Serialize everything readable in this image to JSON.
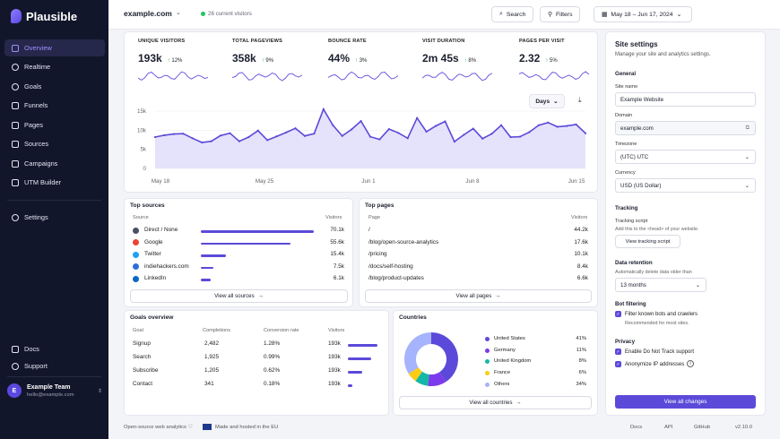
{
  "app": {
    "name": "Plausible"
  },
  "sidebar": {
    "items": [
      {
        "label": "Overview",
        "icon": "grid-icon"
      },
      {
        "label": "Realtime",
        "icon": "clock-icon"
      },
      {
        "label": "Goals",
        "icon": "target-icon"
      },
      {
        "label": "Funnels",
        "icon": "funnel-icon"
      },
      {
        "label": "Pages",
        "icon": "page-icon"
      },
      {
        "label": "Sources",
        "icon": "sources-icon"
      },
      {
        "label": "Campaigns",
        "icon": "megaphone-icon"
      },
      {
        "label": "UTM Builder",
        "icon": "builder-icon"
      }
    ],
    "settings": "Settings",
    "docs": "Docs",
    "support": "Support",
    "user": {
      "initial": "E",
      "name": "Example Team",
      "email": "hello@example.com"
    }
  },
  "header": {
    "site": "example.com",
    "visitors_now": "26 current visitors",
    "search": "Search",
    "filters": "Filters",
    "date_range": "May 18 – Jun 17, 2024"
  },
  "stats": [
    {
      "label": "UNIQUE VISITORS",
      "value": "193k",
      "change": "12%"
    },
    {
      "label": "TOTAL PAGEVIEWS",
      "value": "358k",
      "change": "9%"
    },
    {
      "label": "BOUNCE RATE",
      "value": "44%",
      "change": "3%"
    },
    {
      "label": "VISIT DURATION",
      "value": "2m 45s",
      "change": "8%"
    },
    {
      "label": "PAGES PER VISIT",
      "value": "2.32",
      "change": "5%"
    }
  ],
  "graph": {
    "interval": "Days"
  },
  "chart_data": {
    "type": "area",
    "title": "",
    "ylim": [
      0,
      15000
    ],
    "yticks": [
      "15k",
      "10k",
      "5k",
      "0"
    ],
    "xticks": [
      "May 18",
      "May 25",
      "Jun 1",
      "Jun 8",
      "Jun 15"
    ],
    "values": [
      8200,
      8700,
      9000,
      9100,
      7900,
      6800,
      7100,
      8600,
      9200,
      7100,
      8200,
      9900,
      7400,
      8400,
      9400,
      10500,
      8500,
      9100,
      15500,
      11300,
      8500,
      10200,
      12400,
      8300,
      7600,
      10300,
      9300,
      7900,
      13200,
      9600,
      11100,
      12300,
      7000,
      8800,
      10400,
      7800,
      9100,
      11300,
      8200,
      8300,
      9500,
      11300,
      12000,
      10900,
      11100,
      11500,
      9200
    ]
  },
  "top_sources": {
    "title": "Top sources",
    "col_source": "Source",
    "col_visitors": "Visitors",
    "view_all": "View all sources",
    "rows": [
      {
        "name": "Direct / None",
        "value": "70.1k",
        "frac": 1.0,
        "color": "#4a4f63"
      },
      {
        "name": "Google",
        "value": "55.6k",
        "frac": 0.79,
        "color": "#ea4335"
      },
      {
        "name": "Twitter",
        "value": "15.4k",
        "frac": 0.22,
        "color": "#1da1f2"
      },
      {
        "name": "indiehackers.com",
        "value": "7.5k",
        "frac": 0.11,
        "color": "#2e6fd8"
      },
      {
        "name": "LinkedIn",
        "value": "6.1k",
        "frac": 0.09,
        "color": "#0a66c2"
      }
    ]
  },
  "top_pages": {
    "title": "Top pages",
    "col_page": "Page",
    "col_visitors": "Visitors",
    "view_all": "View all pages",
    "rows": [
      {
        "name": "/",
        "value": "44.2k"
      },
      {
        "name": "/blog/open-source-analytics",
        "value": "17.6k"
      },
      {
        "name": "/pricing",
        "value": "10.1k"
      },
      {
        "name": "/docs/self-hosting",
        "value": "8.4k"
      },
      {
        "name": "/blog/product-updates",
        "value": "6.6k"
      }
    ]
  },
  "goals": {
    "title": "Goals overview",
    "cols": [
      "Goal",
      "Completions",
      "Conversion rate",
      "Visitors"
    ],
    "rows": [
      {
        "name": "Signup",
        "completions": "2,482",
        "rate": "1.28%",
        "visitors": "193k",
        "frac": 1.0
      },
      {
        "name": "Search",
        "completions": "1,925",
        "rate": "0.99%",
        "visitors": "193k",
        "frac": 0.78
      },
      {
        "name": "Subscribe",
        "completions": "1,205",
        "rate": "0.62%",
        "visitors": "193k",
        "frac": 0.49
      },
      {
        "name": "Contact",
        "completions": "341",
        "rate": "0.18%",
        "visitors": "193k",
        "frac": 0.14
      }
    ]
  },
  "countries": {
    "title": "Countries",
    "view_all": "View all countries",
    "rows": [
      {
        "name": "United States",
        "value": "41%",
        "frac": 0.41,
        "color": "#5b4ad9"
      },
      {
        "name": "Germany",
        "value": "11%",
        "frac": 0.11,
        "color": "#7c3aed"
      },
      {
        "name": "United Kingdom",
        "value": "8%",
        "frac": 0.08,
        "color": "#14b8a6"
      },
      {
        "name": "France",
        "value": "6%",
        "frac": 0.06,
        "color": "#facc15"
      },
      {
        "name": "Others",
        "value": "34%",
        "frac": 0.34,
        "color": "#a5b4fc"
      }
    ]
  },
  "settings": {
    "title": "Site settings",
    "subtitle": "Manage your site and analytics settings.",
    "general": "General",
    "site_name_label": "Site name",
    "site_name": "Example Website",
    "domain_label": "Domain",
    "domain": "example.com",
    "timezone_label": "Timezone",
    "timezone": "(UTC) UTC",
    "currency_label": "Currency",
    "currency": "USD (US Dollar)",
    "tracking": "Tracking",
    "tracking_script": "Tracking script",
    "tracking_hint": "Add this to the <head> of your website.",
    "view_script": "View tracking script",
    "retention": "Data retention",
    "retention_hint": "Automatically delete data older than",
    "retention_value": "13 months",
    "bot": "Bot filtering",
    "bot_option": "Filter known bots and crawlers",
    "bot_hint": "Recommended for most sites.",
    "privacy": "Privacy",
    "dnt": "Enable Do Not Track support",
    "anon": "Anonymize IP addresses",
    "save": "View all changes"
  },
  "footer": {
    "left": "Open-source web analytics ♡",
    "eu": "Made and hosted in the EU",
    "links": [
      "Docs",
      "API",
      "GitHub"
    ],
    "version": "v2.10.0"
  }
}
